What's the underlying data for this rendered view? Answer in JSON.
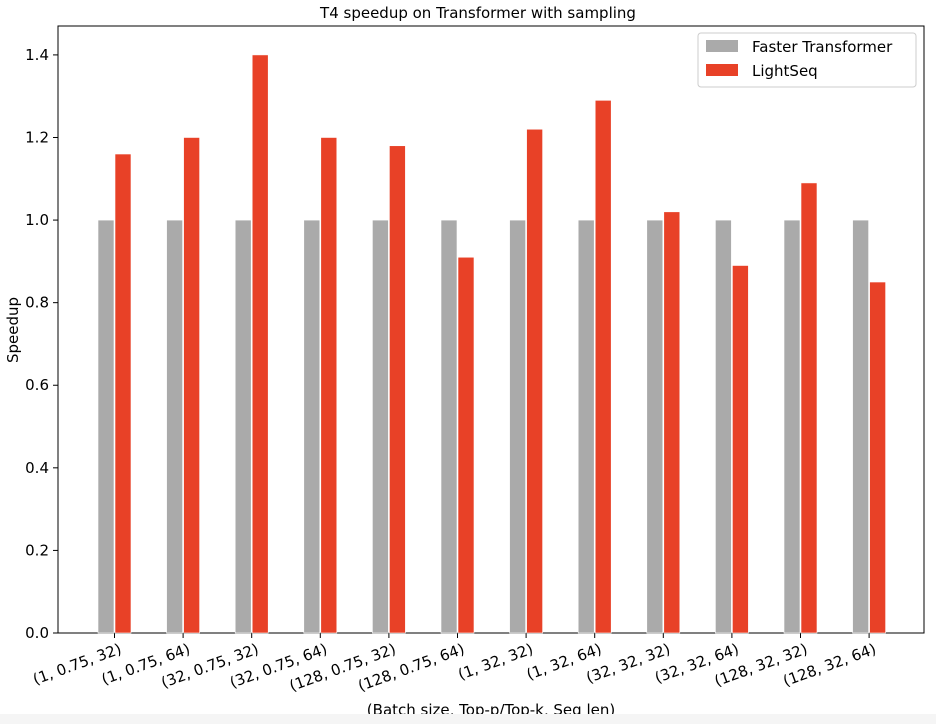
{
  "chart_data": {
    "type": "bar",
    "title": "T4 speedup on Transformer with sampling",
    "xlabel": "(Batch size, Top-p/Top-k, Seq len)",
    "ylabel": "Speedup",
    "categories": [
      "(1, 0.75, 32)",
      "(1, 0.75, 64)",
      "(32, 0.75, 32)",
      "(32, 0.75, 64)",
      "(128, 0.75, 32)",
      "(128, 0.75, 64)",
      "(1, 32, 32)",
      "(1, 32, 64)",
      "(32, 32, 32)",
      "(32, 32, 64)",
      "(128, 32, 32)",
      "(128, 32, 64)"
    ],
    "series": [
      {
        "name": "Faster Transformer",
        "color": "#aaaaaa",
        "values": [
          1.0,
          1.0,
          1.0,
          1.0,
          1.0,
          1.0,
          1.0,
          1.0,
          1.0,
          1.0,
          1.0,
          1.0
        ]
      },
      {
        "name": "LightSeq",
        "color": "#e84127",
        "values": [
          1.16,
          1.2,
          1.4,
          1.2,
          1.18,
          0.91,
          1.22,
          1.29,
          1.02,
          0.89,
          1.09,
          0.85
        ]
      }
    ],
    "ylim": [
      0,
      1.47
    ],
    "yticks": [
      "0.0",
      "0.2",
      "0.4",
      "0.6",
      "0.8",
      "1.0",
      "1.2",
      "1.4"
    ],
    "grid": false,
    "legend_position": "top-right"
  }
}
